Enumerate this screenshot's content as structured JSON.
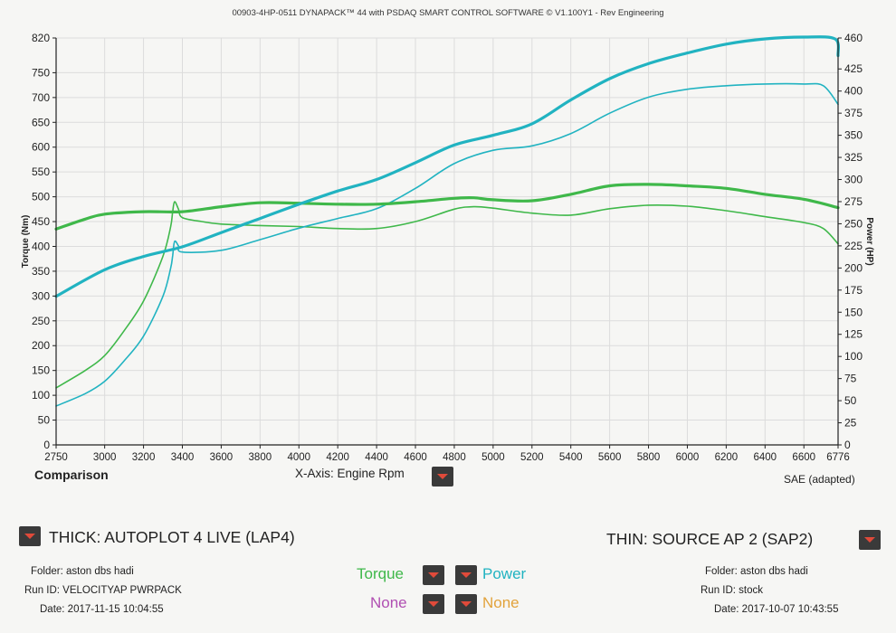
{
  "header": {
    "title": "00903-4HP-0511 DYNAPACK™ 44 with PSDAQ SMART CONTROL SOFTWARE © V1.100Y1 - Rev Engineering"
  },
  "footer": {
    "comparison": "Comparison",
    "xaxis_label": "X-Axis: Engine Rpm",
    "sae": "SAE (adapted)",
    "thick_label": "THICK: AUTOPLOT 4 LIVE (LAP4)",
    "thin_label": "THIN: SOURCE AP 2 (SAP2)",
    "left_run": {
      "folder": "Folder:  aston dbs hadi",
      "run_id": "Run ID:  VELOCITYAP PWRPACK",
      "date": "Date:  2017-11-15 10:04:55"
    },
    "right_run": {
      "folder": "Folder:  aston dbs hadi",
      "run_id": "Run ID:  stock",
      "date": "Date:  2017-10-07 10:43:55"
    },
    "selectors": {
      "torque": "Torque",
      "power": "Power",
      "none1": "None",
      "none2": "None"
    }
  },
  "colors": {
    "torque": "#3fb84a",
    "power": "#21b3c1",
    "none_purple": "#b04fb2",
    "none_orange": "#e2a33c",
    "grid": "#dcdcdc",
    "axis": "#222222"
  },
  "chart_data": {
    "type": "line",
    "title": "00903-4HP-0511 DYNAPACK™ 44 with PSDAQ SMART CONTROL SOFTWARE © V1.100Y1 - Rev Engineering",
    "xlabel": "X-Axis: Engine Rpm",
    "ylabel": "Torque (Nm)",
    "y2label": "Power (HP)",
    "xlim": [
      2750,
      6776
    ],
    "ylim": [
      0,
      820
    ],
    "y2lim": [
      0,
      460
    ],
    "x_ticks": [
      2750,
      3000,
      3200,
      3400,
      3600,
      3800,
      4000,
      4200,
      4400,
      4600,
      4800,
      5000,
      5200,
      5400,
      5600,
      5800,
      6000,
      6200,
      6400,
      6600,
      6776
    ],
    "y_ticks": [
      0,
      50,
      100,
      150,
      200,
      250,
      300,
      350,
      400,
      450,
      500,
      550,
      600,
      650,
      700,
      750,
      820
    ],
    "y2_ticks": [
      0,
      25,
      50,
      75,
      100,
      125,
      150,
      175,
      200,
      225,
      250,
      275,
      300,
      325,
      350,
      375,
      400,
      425,
      460
    ],
    "grid": true,
    "series": [
      {
        "name": "Torque",
        "run": "THICK",
        "axis": "left",
        "color": "#3fb84a",
        "width": 3.2,
        "x": [
          2750,
          2900,
          3000,
          3200,
          3400,
          3600,
          3800,
          4000,
          4200,
          4400,
          4600,
          4800,
          4900,
          5000,
          5200,
          5400,
          5600,
          5800,
          6000,
          6200,
          6400,
          6600,
          6776
        ],
        "y": [
          435,
          455,
          465,
          470,
          470,
          480,
          488,
          487,
          485,
          485,
          490,
          497,
          498,
          494,
          492,
          505,
          522,
          525,
          522,
          517,
          505,
          495,
          478
        ]
      },
      {
        "name": "Power",
        "run": "THICK",
        "axis": "right",
        "color": "#21b3c1",
        "width": 3.2,
        "x": [
          2750,
          3000,
          3200,
          3400,
          3600,
          3800,
          4000,
          4200,
          4400,
          4600,
          4800,
          5000,
          5200,
          5400,
          5600,
          5800,
          6000,
          6200,
          6400,
          6600,
          6760,
          6776
        ],
        "y": [
          168,
          198,
          213,
          224,
          240,
          256,
          272,
          287,
          300,
          319,
          339,
          350,
          363,
          390,
          414,
          431,
          443,
          453,
          459,
          461,
          459,
          440
        ]
      },
      {
        "name": "Torque",
        "run": "THIN",
        "axis": "left",
        "color": "#3fb84a",
        "width": 1.6,
        "x": [
          2750,
          2900,
          3000,
          3100,
          3200,
          3300,
          3340,
          3350,
          3360,
          3380,
          3400,
          3500,
          3600,
          3800,
          4000,
          4200,
          4400,
          4600,
          4800,
          4900,
          5000,
          5200,
          5400,
          5600,
          5800,
          6000,
          6200,
          6400,
          6600,
          6700,
          6776
        ],
        "y": [
          115,
          150,
          180,
          230,
          290,
          380,
          440,
          470,
          490,
          475,
          458,
          450,
          445,
          442,
          440,
          436,
          436,
          450,
          475,
          480,
          477,
          467,
          463,
          476,
          483,
          481,
          472,
          460,
          448,
          436,
          405
        ]
      },
      {
        "name": "Power",
        "run": "THIN",
        "axis": "right",
        "color": "#21b3c1",
        "width": 1.6,
        "x": [
          2750,
          2900,
          3000,
          3100,
          3200,
          3300,
          3340,
          3350,
          3360,
          3380,
          3400,
          3600,
          3800,
          4000,
          4200,
          4400,
          4600,
          4800,
          5000,
          5200,
          5400,
          5600,
          5800,
          6000,
          6200,
          6400,
          6600,
          6700,
          6776
        ],
        "y": [
          44,
          58,
          72,
          95,
          123,
          168,
          200,
          214,
          230,
          225,
          218,
          220,
          232,
          245,
          256,
          267,
          290,
          318,
          333,
          338,
          352,
          375,
          393,
          402,
          406,
          408,
          408,
          406,
          385
        ]
      }
    ]
  }
}
